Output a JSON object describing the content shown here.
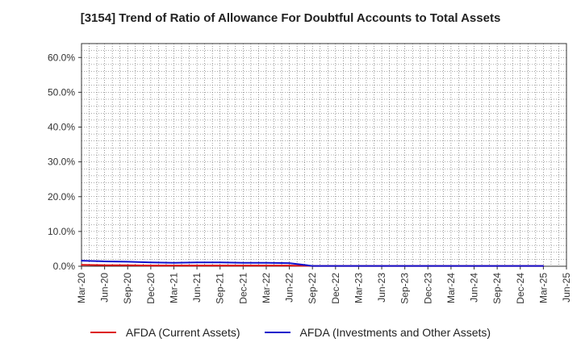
{
  "chart_data": {
    "type": "line",
    "title": "[3154]  Trend of Ratio of Allowance For Doubtful Accounts to Total Assets",
    "xlabel": "",
    "ylabel": "",
    "ylim": [
      0,
      64
    ],
    "y_ticks": [
      0,
      10,
      20,
      30,
      40,
      50,
      60
    ],
    "y_tick_labels": [
      "0.0%",
      "10.0%",
      "20.0%",
      "30.0%",
      "40.0%",
      "50.0%",
      "60.0%"
    ],
    "categories": [
      "Mar-20",
      "Jun-20",
      "Sep-20",
      "Dec-20",
      "Mar-21",
      "Jun-21",
      "Sep-21",
      "Dec-21",
      "Mar-22",
      "Jun-22",
      "Sep-22",
      "Dec-22",
      "Mar-23",
      "Jun-23",
      "Sep-23",
      "Dec-23",
      "Mar-24",
      "Jun-24",
      "Sep-24",
      "Dec-24",
      "Mar-25",
      "Jun-25"
    ],
    "grid": true,
    "legend_position": "bottom",
    "series": [
      {
        "name": "AFDA (Current Assets)",
        "color": "#dd1111",
        "values": [
          0.4,
          0.3,
          0.3,
          0.2,
          0.2,
          0.2,
          0.2,
          0.2,
          0.2,
          0.2,
          0.1,
          0.1,
          0.1,
          0.1,
          0.1,
          0.1,
          0.1,
          0.1,
          0.1,
          0.1,
          0.1,
          null
        ]
      },
      {
        "name": "AFDA (Investments and Other Assets)",
        "color": "#1111cc",
        "values": [
          1.6,
          1.4,
          1.3,
          1.1,
          1.0,
          1.1,
          1.1,
          1.0,
          1.0,
          0.9,
          0.1,
          0.1,
          0.1,
          0.1,
          0.1,
          0.1,
          0.1,
          0.1,
          0.1,
          0.1,
          0.1,
          null
        ]
      }
    ]
  }
}
